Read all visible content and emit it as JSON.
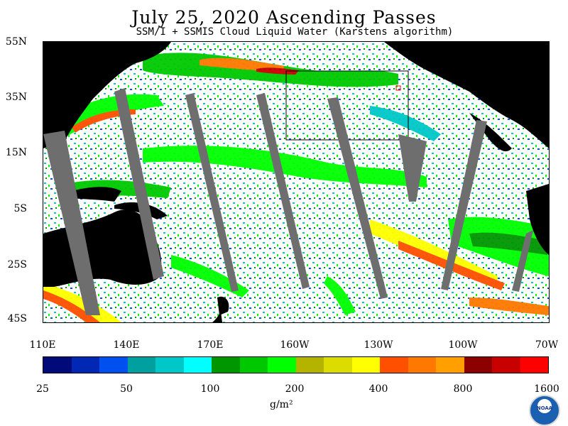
{
  "title": "July 25, 2020  Ascending Passes",
  "subtitle": "SSM/I + SSMIS Cloud Liquid Water (Karstens algorithm)",
  "map": {
    "lat_labels": [
      "55N",
      "35N",
      "15N",
      "5S",
      "25S",
      "45S"
    ],
    "lon_labels": [
      "110E",
      "140E",
      "170E",
      "160W",
      "130W",
      "100W",
      "70W"
    ],
    "land_color": "#000000",
    "gap_color": "#6e6e6e"
  },
  "colorbar": {
    "colors": [
      "#000a78",
      "#0028b4",
      "#0050f0",
      "#00a0a0",
      "#00c8c8",
      "#00ffff",
      "#009600",
      "#00c800",
      "#00ff00",
      "#b4b400",
      "#dcdc00",
      "#ffff00",
      "#ff5000",
      "#ff7800",
      "#ffa000",
      "#8c0000",
      "#c80000",
      "#ff0000"
    ],
    "tick_labels": [
      "25",
      "50",
      "100",
      "200",
      "400",
      "800",
      "1600"
    ],
    "unit": "g/m²"
  },
  "logo": {
    "text": "NOAA"
  }
}
